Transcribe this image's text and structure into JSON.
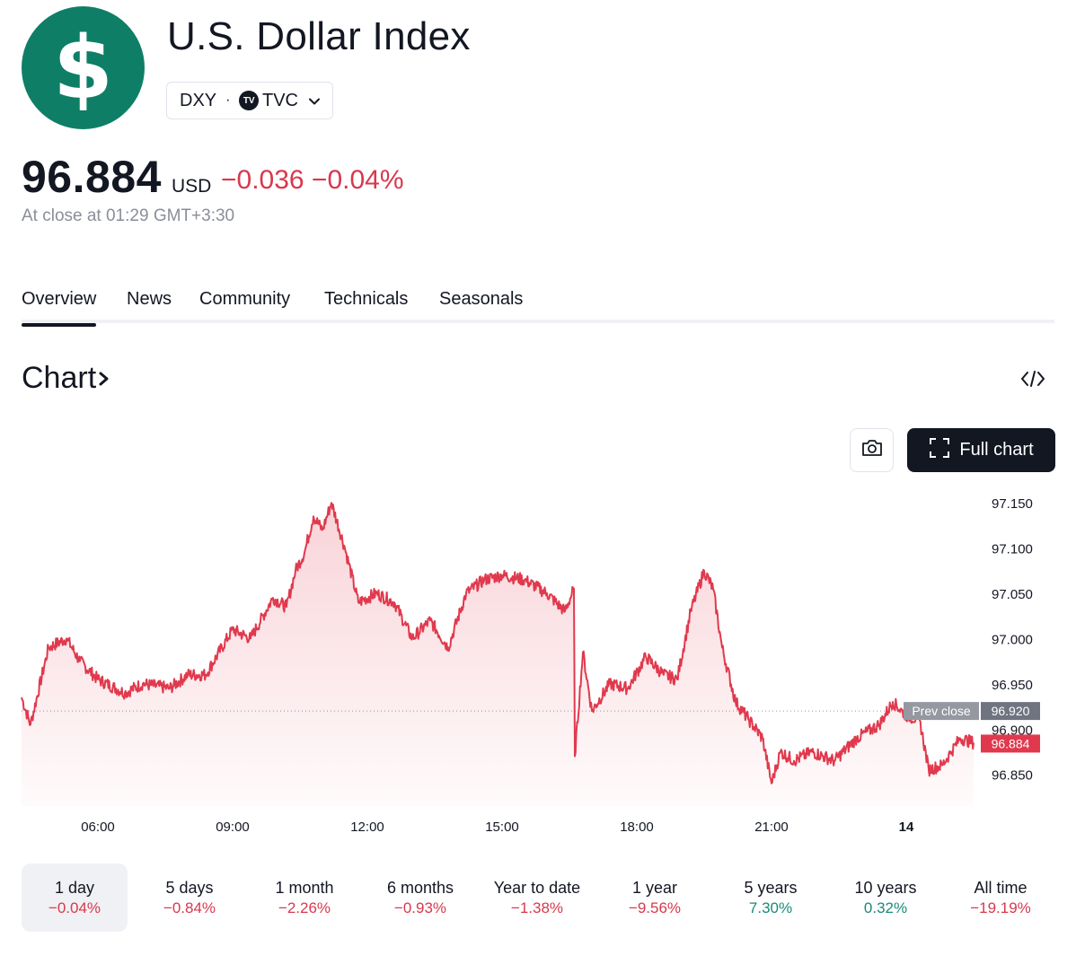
{
  "header": {
    "logo_symbol": "$",
    "title": "U.S. Dollar Index",
    "ticker": "DXY",
    "separator": "·",
    "exchange_logo": "TV",
    "exchange": "TVC"
  },
  "quote": {
    "price": "96.884",
    "currency": "USD",
    "change": "−0.036 −0.04%",
    "close_time": "At close at 01:29 GMT+3:30"
  },
  "tabs": [
    "Overview",
    "News",
    "Community",
    "Technicals",
    "Seasonals"
  ],
  "chart_section": {
    "heading": "Chart",
    "full_chart_label": "Full chart",
    "prev_close_label": "Prev close"
  },
  "colors": {
    "brand": "#0e7f66",
    "line": "#e0394d",
    "negative": "#d8384d",
    "positive": "#1a8a7a"
  },
  "chart_data": {
    "type": "area",
    "x_ticks": [
      "06:00",
      "09:00",
      "12:00",
      "15:00",
      "18:00",
      "21:00",
      "14"
    ],
    "y_ticks": [
      "97.150",
      "97.100",
      "97.050",
      "97.000",
      "96.950",
      "96.900",
      "96.850"
    ],
    "ylim": [
      96.815,
      97.17
    ],
    "prev_close": 96.92,
    "last": 96.884,
    "prev_close_tag": "96.920",
    "last_tag": "96.884",
    "x_hours": [
      4.3,
      4.5,
      4.9,
      5.3,
      5.6,
      6.0,
      6.6,
      7.0,
      7.6,
      8.0,
      8.4,
      9.0,
      9.4,
      9.9,
      10.2,
      10.4,
      10.6,
      10.8,
      11.0,
      11.2,
      11.5,
      11.8,
      12.2,
      12.6,
      13.0,
      13.4,
      13.8,
      14.2,
      14.6,
      15.0,
      15.5,
      16.0,
      16.4,
      16.6,
      16.62,
      16.8,
      17.0,
      17.4,
      17.8,
      18.2,
      18.6,
      18.9,
      19.2,
      19.5,
      19.7,
      19.9,
      20.2,
      20.5,
      20.8,
      21.0,
      21.2,
      21.5,
      21.9,
      22.4,
      22.9,
      23.4,
      23.7,
      24.0,
      24.3,
      24.5,
      24.8,
      25.0,
      25.2,
      25.5
    ],
    "values": [
      96.935,
      96.905,
      96.99,
      97.0,
      96.975,
      96.955,
      96.94,
      96.95,
      96.945,
      96.96,
      96.96,
      97.01,
      97.0,
      97.045,
      97.035,
      97.075,
      97.095,
      97.135,
      97.12,
      97.15,
      97.1,
      97.04,
      97.05,
      97.04,
      97.0,
      97.02,
      96.99,
      97.05,
      97.065,
      97.07,
      97.065,
      97.05,
      97.03,
      97.055,
      96.87,
      96.985,
      96.92,
      96.95,
      96.945,
      96.98,
      96.96,
      96.955,
      97.03,
      97.075,
      97.055,
      96.99,
      96.93,
      96.91,
      96.89,
      96.84,
      96.875,
      96.865,
      96.875,
      96.865,
      96.89,
      96.905,
      96.93,
      96.915,
      96.91,
      96.855,
      96.86,
      96.875,
      96.89,
      96.885
    ]
  },
  "periods": [
    {
      "label": "1 day",
      "value": "−0.04%",
      "sign": "neg",
      "active": true
    },
    {
      "label": "5 days",
      "value": "−0.84%",
      "sign": "neg"
    },
    {
      "label": "1 month",
      "value": "−2.26%",
      "sign": "neg"
    },
    {
      "label": "6 months",
      "value": "−0.93%",
      "sign": "neg"
    },
    {
      "label": "Year to date",
      "value": "−1.38%",
      "sign": "neg"
    },
    {
      "label": "1 year",
      "value": "−9.56%",
      "sign": "neg"
    },
    {
      "label": "5 years",
      "value": "7.30%",
      "sign": "pos"
    },
    {
      "label": "10 years",
      "value": "0.32%",
      "sign": "pos"
    },
    {
      "label": "All time",
      "value": "−19.19%",
      "sign": "neg"
    }
  ]
}
